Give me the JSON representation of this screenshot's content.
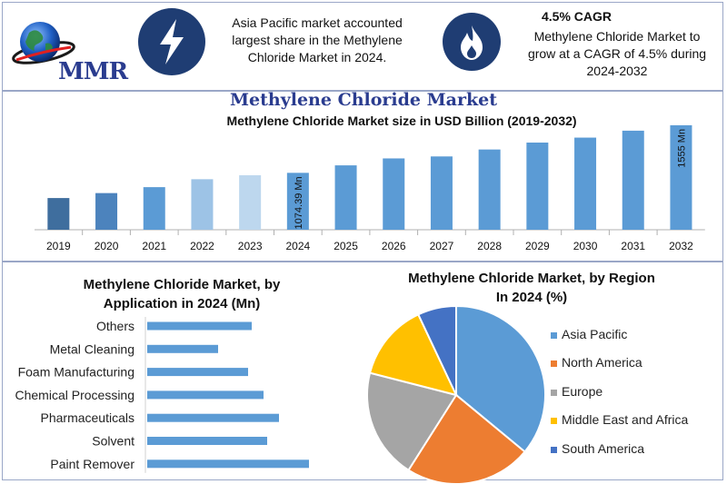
{
  "header": {
    "logo_text": "MMR",
    "logo_icon": "globe-icon",
    "left_icon": "lightning-bolt-icon",
    "right_icon": "flame-icon",
    "insight_text_lines": [
      "Asia Pacific market accounted",
      "largest share in the Methylene",
      "Chloride Market in 2024."
    ],
    "cagr_title": "4.5% CAGR",
    "cagr_text_lines": [
      "Methylene Chloride Market to",
      "grow at a CAGR of 4.5% during",
      "2024-2032"
    ]
  },
  "colors": {
    "accent_dark": "#2a3c8f",
    "badge": "#1f3d73",
    "bar_default": "#5b9bd5",
    "bar_2019": "#3f6e9e",
    "bar_2020": "#4c83bd",
    "bar_2022": "#9dc3e6",
    "bar_2023": "#bdd7ee",
    "pie_asia_pacific": "#5b9bd5",
    "pie_north_america": "#ed7d31",
    "pie_europe": "#a5a5a5",
    "pie_mea": "#ffc000",
    "pie_south_america": "#4472c4"
  },
  "chart_data": [
    {
      "type": "bar",
      "title": "Methylene Chloride Market",
      "subtitle": "Methylene Chloride Market size in USD Billion (2019-2032)",
      "categories": [
        "2019",
        "2020",
        "2021",
        "2022",
        "2023",
        "2024",
        "2025",
        "2026",
        "2027",
        "2028",
        "2029",
        "2030",
        "2031",
        "2032"
      ],
      "values": [
        820,
        870,
        930,
        1010,
        1050,
        1074.39,
        1150,
        1220,
        1240,
        1310,
        1380,
        1430,
        1500,
        1555
      ],
      "data_labels": [
        {
          "category": "2024",
          "text": "1074.39 Mn"
        },
        {
          "category": "2032",
          "text": "1555 Mn"
        }
      ],
      "colors": [
        "#3f6e9e",
        "#4c83bd",
        "#5b9bd5",
        "#9dc3e6",
        "#bdd7ee",
        "#5b9bd5",
        "#5b9bd5",
        "#5b9bd5",
        "#5b9bd5",
        "#5b9bd5",
        "#5b9bd5",
        "#5b9bd5",
        "#5b9bd5",
        "#5b9bd5"
      ],
      "ylim": [
        500,
        1600
      ],
      "grid": false
    },
    {
      "type": "bar",
      "orientation": "horizontal",
      "title_lines": [
        "Methylene Chloride Market, by",
        "Application in 2024 (Mn)"
      ],
      "categories": [
        "Others",
        "Metal Cleaning",
        "Foam Manufacturing",
        "Chemical Processing",
        "Pharmaceuticals",
        "Solvent",
        "Paint Remover"
      ],
      "values": [
        115,
        78,
        111,
        128,
        145,
        132,
        178
      ],
      "xlim": [
        0,
        200
      ],
      "grid": false
    },
    {
      "type": "pie",
      "title_lines": [
        "Methylene Chloride Market, by Region",
        "In 2024 (%)"
      ],
      "labels": [
        "Asia Pacific",
        "North America",
        "Europe",
        "Middle East and Africa",
        "South America"
      ],
      "values": [
        36,
        23,
        20,
        14,
        7
      ],
      "colors": [
        "#5b9bd5",
        "#ed7d31",
        "#a5a5a5",
        "#ffc000",
        "#4472c4"
      ],
      "legend": "right"
    }
  ]
}
